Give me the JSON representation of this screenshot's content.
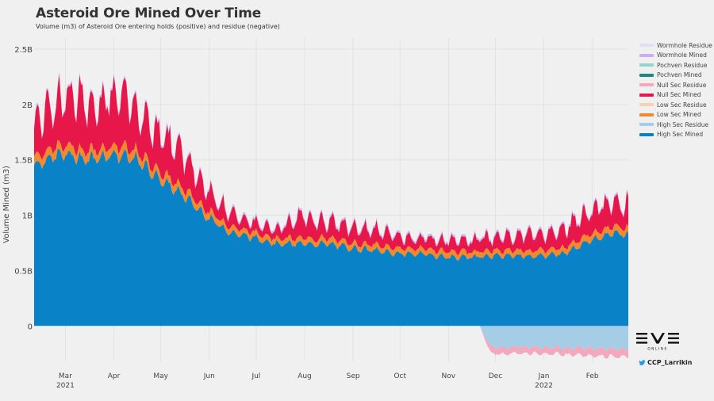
{
  "header": {
    "title": "Asteroid Ore Mined Over Time",
    "subtitle": "Volume (m3) of Asteroid Ore entering holds (positive) and residue (negative)"
  },
  "credit": "CCP_Larrikin",
  "colors": {
    "high_mined": "#0a82c8",
    "high_residue": "#a6cde6",
    "low_mined": "#f28a2c",
    "low_residue": "#f5d3b0",
    "null_mined": "#e8174a",
    "null_residue": "#f2a9bd",
    "pochven_mined": "#1a8a86",
    "pochven_residue": "#96d3cd",
    "wormhole_mined": "#c8b0f0",
    "wormhole_residue": "#e3ddf5"
  },
  "chart_data": {
    "type": "area",
    "title": "Asteroid Ore Mined Over Time",
    "subtitle": "Volume (m3) of Asteroid Ore entering holds (positive) and residue (negative)",
    "ylabel": "Volume Mined (m3)",
    "xlabel": "",
    "ylim": [
      -0.32,
      2.6
    ],
    "y_ticks": [
      0,
      0.5,
      1,
      1.5,
      2,
      2.5
    ],
    "y_tick_labels": [
      "0",
      "0.5B",
      "1B",
      "1.5B",
      "2B",
      "2.5B"
    ],
    "x_range": [
      "2021-02-09",
      "2022-02-24"
    ],
    "x_ticks": [
      {
        "date": "2021-03-01",
        "label": "Mar",
        "sub": "2021"
      },
      {
        "date": "2021-04-01",
        "label": "Apr",
        "sub": ""
      },
      {
        "date": "2021-05-01",
        "label": "May",
        "sub": ""
      },
      {
        "date": "2021-06-01",
        "label": "Jun",
        "sub": ""
      },
      {
        "date": "2021-07-01",
        "label": "Jul",
        "sub": ""
      },
      {
        "date": "2021-08-01",
        "label": "Aug",
        "sub": ""
      },
      {
        "date": "2021-09-01",
        "label": "Sep",
        "sub": ""
      },
      {
        "date": "2021-10-01",
        "label": "Oct",
        "sub": ""
      },
      {
        "date": "2021-11-01",
        "label": "Nov",
        "sub": ""
      },
      {
        "date": "2021-12-01",
        "label": "Dec",
        "sub": ""
      },
      {
        "date": "2022-01-01",
        "label": "Jan",
        "sub": "2022"
      },
      {
        "date": "2022-02-01",
        "label": "Feb",
        "sub": ""
      }
    ],
    "legend_position": "right",
    "legend": [
      "Wormhole Residue",
      "Wormhole Mined",
      "Pochven Residue",
      "Pochven Mined",
      "Null Sec Residue",
      "Null Sec Mined",
      "Low Sec Residue",
      "Low Sec Mined",
      "High Sec Residue",
      "High Sec Mined"
    ],
    "units": "billion m3",
    "series": [
      {
        "name": "High Sec Mined",
        "x": [
          "2021-02-09",
          "2021-02-20",
          "2021-03-01",
          "2021-03-15",
          "2021-04-01",
          "2021-04-15",
          "2021-05-01",
          "2021-05-15",
          "2021-06-01",
          "2021-06-15",
          "2021-07-01",
          "2021-07-15",
          "2021-08-01",
          "2021-08-15",
          "2021-09-01",
          "2021-09-15",
          "2021-10-01",
          "2021-10-15",
          "2021-11-01",
          "2021-11-15",
          "2021-12-01",
          "2021-12-15",
          "2022-01-01",
          "2022-01-15",
          "2022-02-01",
          "2022-02-15",
          "2022-02-24"
        ],
        "values": [
          1.45,
          1.52,
          1.55,
          1.5,
          1.55,
          1.5,
          1.32,
          1.18,
          0.97,
          0.84,
          0.79,
          0.74,
          0.74,
          0.74,
          0.7,
          0.68,
          0.65,
          0.65,
          0.62,
          0.62,
          0.63,
          0.63,
          0.63,
          0.66,
          0.78,
          0.84,
          0.82
        ]
      },
      {
        "name": "Low Sec Mined",
        "x": [
          "2021-02-09",
          "2021-03-01",
          "2021-04-01",
          "2021-05-01",
          "2021-06-01",
          "2021-07-01",
          "2021-08-01",
          "2021-09-01",
          "2021-10-01",
          "2021-11-01",
          "2021-12-01",
          "2022-01-01",
          "2022-02-01",
          "2022-02-24"
        ],
        "values": [
          0.08,
          0.08,
          0.08,
          0.07,
          0.06,
          0.05,
          0.05,
          0.05,
          0.05,
          0.05,
          0.05,
          0.05,
          0.06,
          0.06
        ]
      },
      {
        "name": "Null Sec Mined",
        "x": [
          "2021-02-09",
          "2021-02-20",
          "2021-03-01",
          "2021-03-15",
          "2021-04-01",
          "2021-04-15",
          "2021-05-01",
          "2021-05-15",
          "2021-06-01",
          "2021-06-15",
          "2021-07-01",
          "2021-07-15",
          "2021-08-01",
          "2021-08-15",
          "2021-09-01",
          "2021-09-15",
          "2021-10-01",
          "2021-10-15",
          "2021-11-01",
          "2021-11-15",
          "2021-12-01",
          "2021-12-15",
          "2022-01-01",
          "2022-01-15",
          "2022-02-01",
          "2022-02-15",
          "2022-02-24"
        ],
        "values": [
          0.3,
          0.4,
          0.45,
          0.42,
          0.45,
          0.4,
          0.35,
          0.32,
          0.18,
          0.12,
          0.08,
          0.09,
          0.2,
          0.15,
          0.14,
          0.13,
          0.1,
          0.09,
          0.1,
          0.1,
          0.12,
          0.14,
          0.15,
          0.17,
          0.22,
          0.24,
          0.2
        ]
      },
      {
        "name": "Wormhole Mined",
        "x": [
          "2021-02-09",
          "2022-02-24"
        ],
        "values": [
          0.02,
          0.02
        ]
      },
      {
        "name": "High Sec Residue",
        "x": [
          "2021-11-21",
          "2021-11-28",
          "2021-12-15",
          "2022-01-01",
          "2022-01-15",
          "2022-02-01",
          "2022-02-24"
        ],
        "values": [
          0,
          -0.19,
          -0.19,
          -0.19,
          -0.2,
          -0.2,
          -0.21
        ]
      },
      {
        "name": "Null Sec Residue",
        "x": [
          "2021-11-21",
          "2021-11-28",
          "2021-12-15",
          "2022-01-01",
          "2022-01-15",
          "2022-02-01",
          "2022-02-24"
        ],
        "values": [
          0,
          -0.06,
          -0.06,
          -0.06,
          -0.06,
          -0.07,
          -0.07
        ]
      }
    ]
  }
}
